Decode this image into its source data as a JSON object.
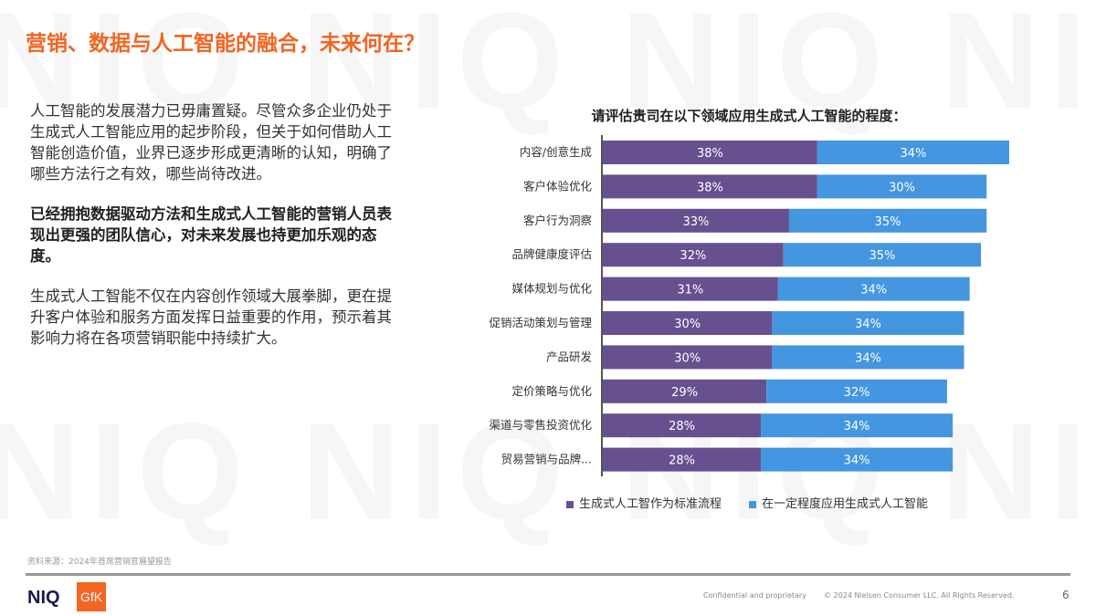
{
  "watermark": "NIQ",
  "title": "营销、数据与人工智能的融合，未来何在？",
  "paragraphs": [
    "人工智能的发展潜力已毋庸置疑。尽管众多企业仍处于生成式人工智能应用的起步阶段，但关于如何借助人工智能创造价值，业界已逐步形成更清晰的认知，明确了哪些方法行之有效，哪些尚待改进。",
    "已经拥抱数据驱动方法和生成式人工智能的营销人员表现出更强的团队信心，对未来发展也持更加乐观的态度。",
    "生成式人工智能不仅在内容创作领域大展拳脚，更在提升客户体验和服务方面发挥日益重要的作用，预示着其影响力将在各项营销职能中持续扩大。"
  ],
  "chart_data": {
    "type": "bar",
    "orientation": "horizontal",
    "stacked": true,
    "title": "请评估贵司在以下领域应用生成式人工智能的程度：",
    "categories": [
      "内容/创意生成",
      "客户体验优化",
      "客户行为洞察",
      "品牌健康度评估",
      "媒体规划与优化",
      "促销活动策划与管理",
      "产品研发",
      "定价策略与优化",
      "渠道与零售投资优化",
      "贸易营销与品牌..."
    ],
    "series": [
      {
        "name": "生成式人工智作为标准流程",
        "color": "#67508f",
        "values": [
          38,
          38,
          33,
          32,
          31,
          30,
          30,
          29,
          28,
          28
        ]
      },
      {
        "name": "在一定程度应用生成式人工智能",
        "color": "#4596e0",
        "values": [
          34,
          30,
          35,
          35,
          34,
          34,
          34,
          32,
          34,
          34
        ]
      }
    ],
    "value_format": "%",
    "legend": "bottom",
    "grid": false
  },
  "footer": {
    "source": "资料来源：2024年首席营销官展望报告",
    "logo_niq": "NIQ",
    "logo_gfk": "GfK",
    "confidential": "Confidential and proprietary",
    "copyright": "© 2024 Nielsen Consumer LLC. All Rights Reserved.",
    "page": "6"
  },
  "colors": {
    "accent": "#f26522",
    "purple": "#67508f",
    "blue": "#4596e0"
  }
}
